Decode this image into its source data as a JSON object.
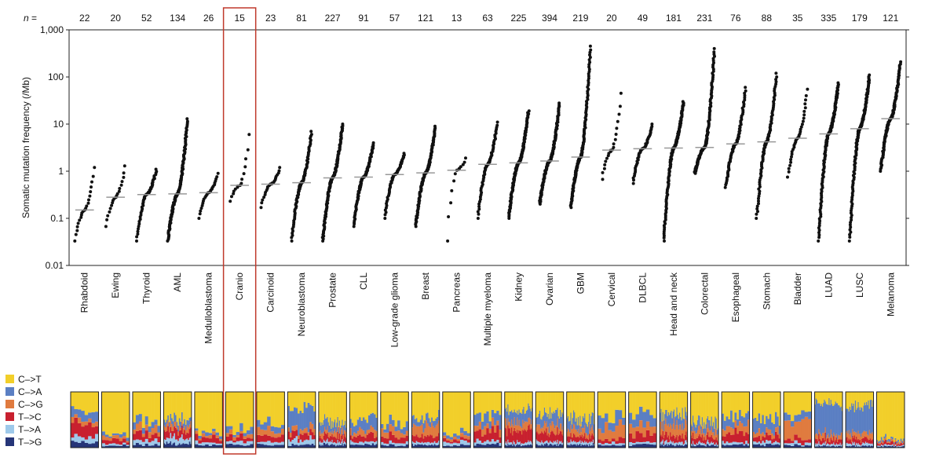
{
  "chart_data": {
    "type": "scatter",
    "ylabel": "Somatic mutation frequency (/Mb)",
    "yscale": "log",
    "ylim": [
      0.01,
      1000
    ],
    "yticks": [
      "0.01",
      "0.1",
      "1",
      "10",
      "100",
      "1,000"
    ],
    "n_prefix": "n =",
    "categories": [
      "Rhabdoid",
      "Ewing",
      "Thyroid",
      "AML",
      "Medulloblastoma",
      "Cranio",
      "Carcinoid",
      "Neuroblastoma",
      "Prostate",
      "CLL",
      "Low-grade glioma",
      "Breast",
      "Pancreas",
      "Multiple myeloma",
      "Kidney",
      "Ovarian",
      "GBM",
      "Cervical",
      "DLBCL",
      "Head and neck",
      "Colorectal",
      "Esophageal",
      "Stomach",
      "Bladder",
      "LUAD",
      "LUSC",
      "Melanoma"
    ],
    "n": [
      22,
      20,
      52,
      134,
      26,
      15,
      23,
      81,
      227,
      91,
      57,
      121,
      13,
      63,
      225,
      394,
      219,
      20,
      49,
      181,
      231,
      76,
      88,
      35,
      335,
      179,
      121
    ],
    "medians": [
      0.15,
      0.28,
      0.32,
      0.33,
      0.35,
      0.5,
      0.53,
      0.57,
      0.72,
      0.75,
      0.85,
      0.92,
      1.05,
      1.4,
      1.5,
      1.65,
      2.0,
      2.8,
      3.0,
      3.1,
      3.2,
      3.8,
      4.2,
      5.0,
      6.2,
      8.0,
      13.0
    ],
    "ranges": [
      [
        0.033,
        1.2
      ],
      [
        0.067,
        1.3
      ],
      [
        0.033,
        1.1
      ],
      [
        0.033,
        13
      ],
      [
        0.1,
        0.9
      ],
      [
        0.23,
        6
      ],
      [
        0.17,
        1.2
      ],
      [
        0.033,
        7
      ],
      [
        0.033,
        10
      ],
      [
        0.067,
        4
      ],
      [
        0.1,
        2.4
      ],
      [
        0.067,
        9
      ],
      [
        0.033,
        1.9
      ],
      [
        0.1,
        11
      ],
      [
        0.1,
        19
      ],
      [
        0.2,
        28
      ],
      [
        0.17,
        450
      ],
      [
        0.67,
        45
      ],
      [
        0.55,
        10
      ],
      [
        0.033,
        30
      ],
      [
        0.9,
        400
      ],
      [
        0.45,
        60
      ],
      [
        0.1,
        120
      ],
      [
        0.75,
        55
      ],
      [
        0.033,
        75
      ],
      [
        0.033,
        110
      ],
      [
        1.0,
        210
      ]
    ],
    "highlight": "Cranio",
    "highlight_color": "#c0392b",
    "median_color": "#999999",
    "legend": [
      {
        "label": "C–>T",
        "color": "#f2cf2a"
      },
      {
        "label": "C–>A",
        "color": "#5b7fc3"
      },
      {
        "label": "C–>G",
        "color": "#e07b3f"
      },
      {
        "label": "T–>C",
        "color": "#c8202f"
      },
      {
        "label": "T–>A",
        "color": "#9ec9ea"
      },
      {
        "label": "T–>G",
        "color": "#263578"
      }
    ],
    "spectrum_mix": [
      [
        0.35,
        0.15,
        0.1,
        0.2,
        0.1,
        0.1
      ],
      [
        0.75,
        0.05,
        0.05,
        0.08,
        0.04,
        0.03
      ],
      [
        0.55,
        0.1,
        0.1,
        0.12,
        0.08,
        0.05
      ],
      [
        0.5,
        0.1,
        0.08,
        0.15,
        0.1,
        0.07
      ],
      [
        0.7,
        0.05,
        0.05,
        0.1,
        0.05,
        0.05
      ],
      [
        0.7,
        0.08,
        0.05,
        0.07,
        0.05,
        0.05
      ],
      [
        0.6,
        0.1,
        0.1,
        0.1,
        0.05,
        0.05
      ],
      [
        0.3,
        0.35,
        0.1,
        0.1,
        0.1,
        0.05
      ],
      [
        0.55,
        0.15,
        0.1,
        0.1,
        0.05,
        0.05
      ],
      [
        0.5,
        0.2,
        0.1,
        0.1,
        0.05,
        0.05
      ],
      [
        0.6,
        0.12,
        0.1,
        0.1,
        0.04,
        0.04
      ],
      [
        0.45,
        0.15,
        0.2,
        0.1,
        0.05,
        0.05
      ],
      [
        0.75,
        0.05,
        0.05,
        0.05,
        0.05,
        0.05
      ],
      [
        0.45,
        0.2,
        0.1,
        0.15,
        0.05,
        0.05
      ],
      [
        0.35,
        0.2,
        0.15,
        0.2,
        0.05,
        0.05
      ],
      [
        0.4,
        0.22,
        0.13,
        0.15,
        0.05,
        0.05
      ],
      [
        0.5,
        0.18,
        0.12,
        0.1,
        0.05,
        0.05
      ],
      [
        0.45,
        0.2,
        0.2,
        0.07,
        0.04,
        0.04
      ],
      [
        0.4,
        0.2,
        0.15,
        0.15,
        0.05,
        0.05
      ],
      [
        0.4,
        0.2,
        0.2,
        0.1,
        0.05,
        0.05
      ],
      [
        0.55,
        0.15,
        0.12,
        0.1,
        0.04,
        0.04
      ],
      [
        0.4,
        0.2,
        0.15,
        0.15,
        0.05,
        0.05
      ],
      [
        0.5,
        0.2,
        0.1,
        0.1,
        0.05,
        0.05
      ],
      [
        0.4,
        0.15,
        0.3,
        0.07,
        0.04,
        0.04
      ],
      [
        0.2,
        0.55,
        0.1,
        0.08,
        0.04,
        0.03
      ],
      [
        0.25,
        0.5,
        0.1,
        0.08,
        0.04,
        0.03
      ],
      [
        0.85,
        0.04,
        0.03,
        0.04,
        0.02,
        0.02
      ]
    ]
  }
}
